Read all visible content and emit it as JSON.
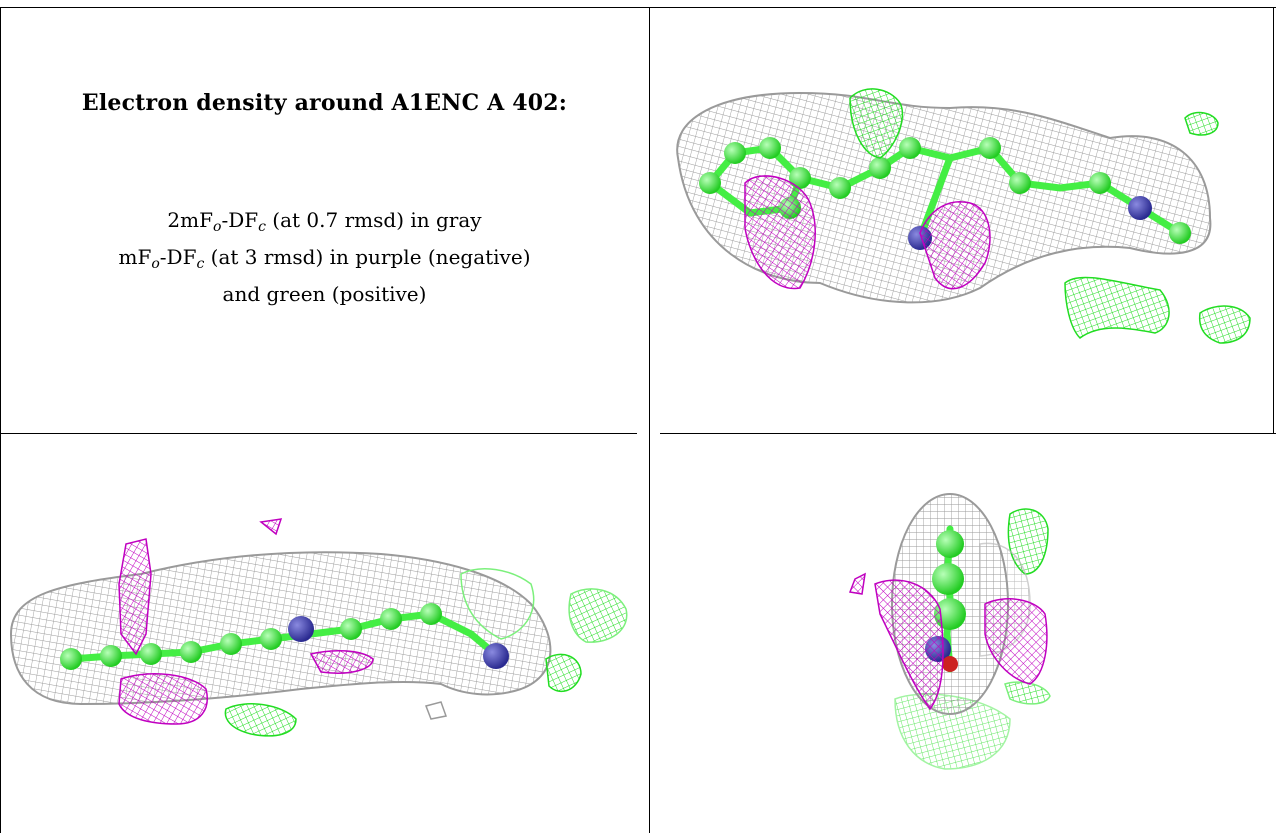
{
  "caption": {
    "title": "Electron density around A1ENC A 402:",
    "line1": {
      "prefix": "2mF",
      "o": "o",
      "mid": "-DF",
      "c": "c",
      "rest": " (at 0.7 rmsd) in gray"
    },
    "line2": {
      "prefix": "mF",
      "o": "o",
      "mid": "-DF",
      "c": "c",
      "rest": " (at 3 rmsd) in purple (negative)"
    },
    "line3": "and green (positive)"
  },
  "colors": {
    "density_2fofc": "#9a9a9a",
    "difference_negative": "#c000c0",
    "difference_positive": "#22dd22",
    "carbon": "#44ee44",
    "nitrogen": "#3a3ab0",
    "oxygen": "#cc2222"
  },
  "panels": [
    {
      "name": "top-right-view",
      "description_icon": "ligand-density-view-1"
    },
    {
      "name": "bottom-left-view",
      "description_icon": "ligand-density-view-2"
    },
    {
      "name": "bottom-right-view",
      "description_icon": "ligand-density-view-3"
    }
  ]
}
